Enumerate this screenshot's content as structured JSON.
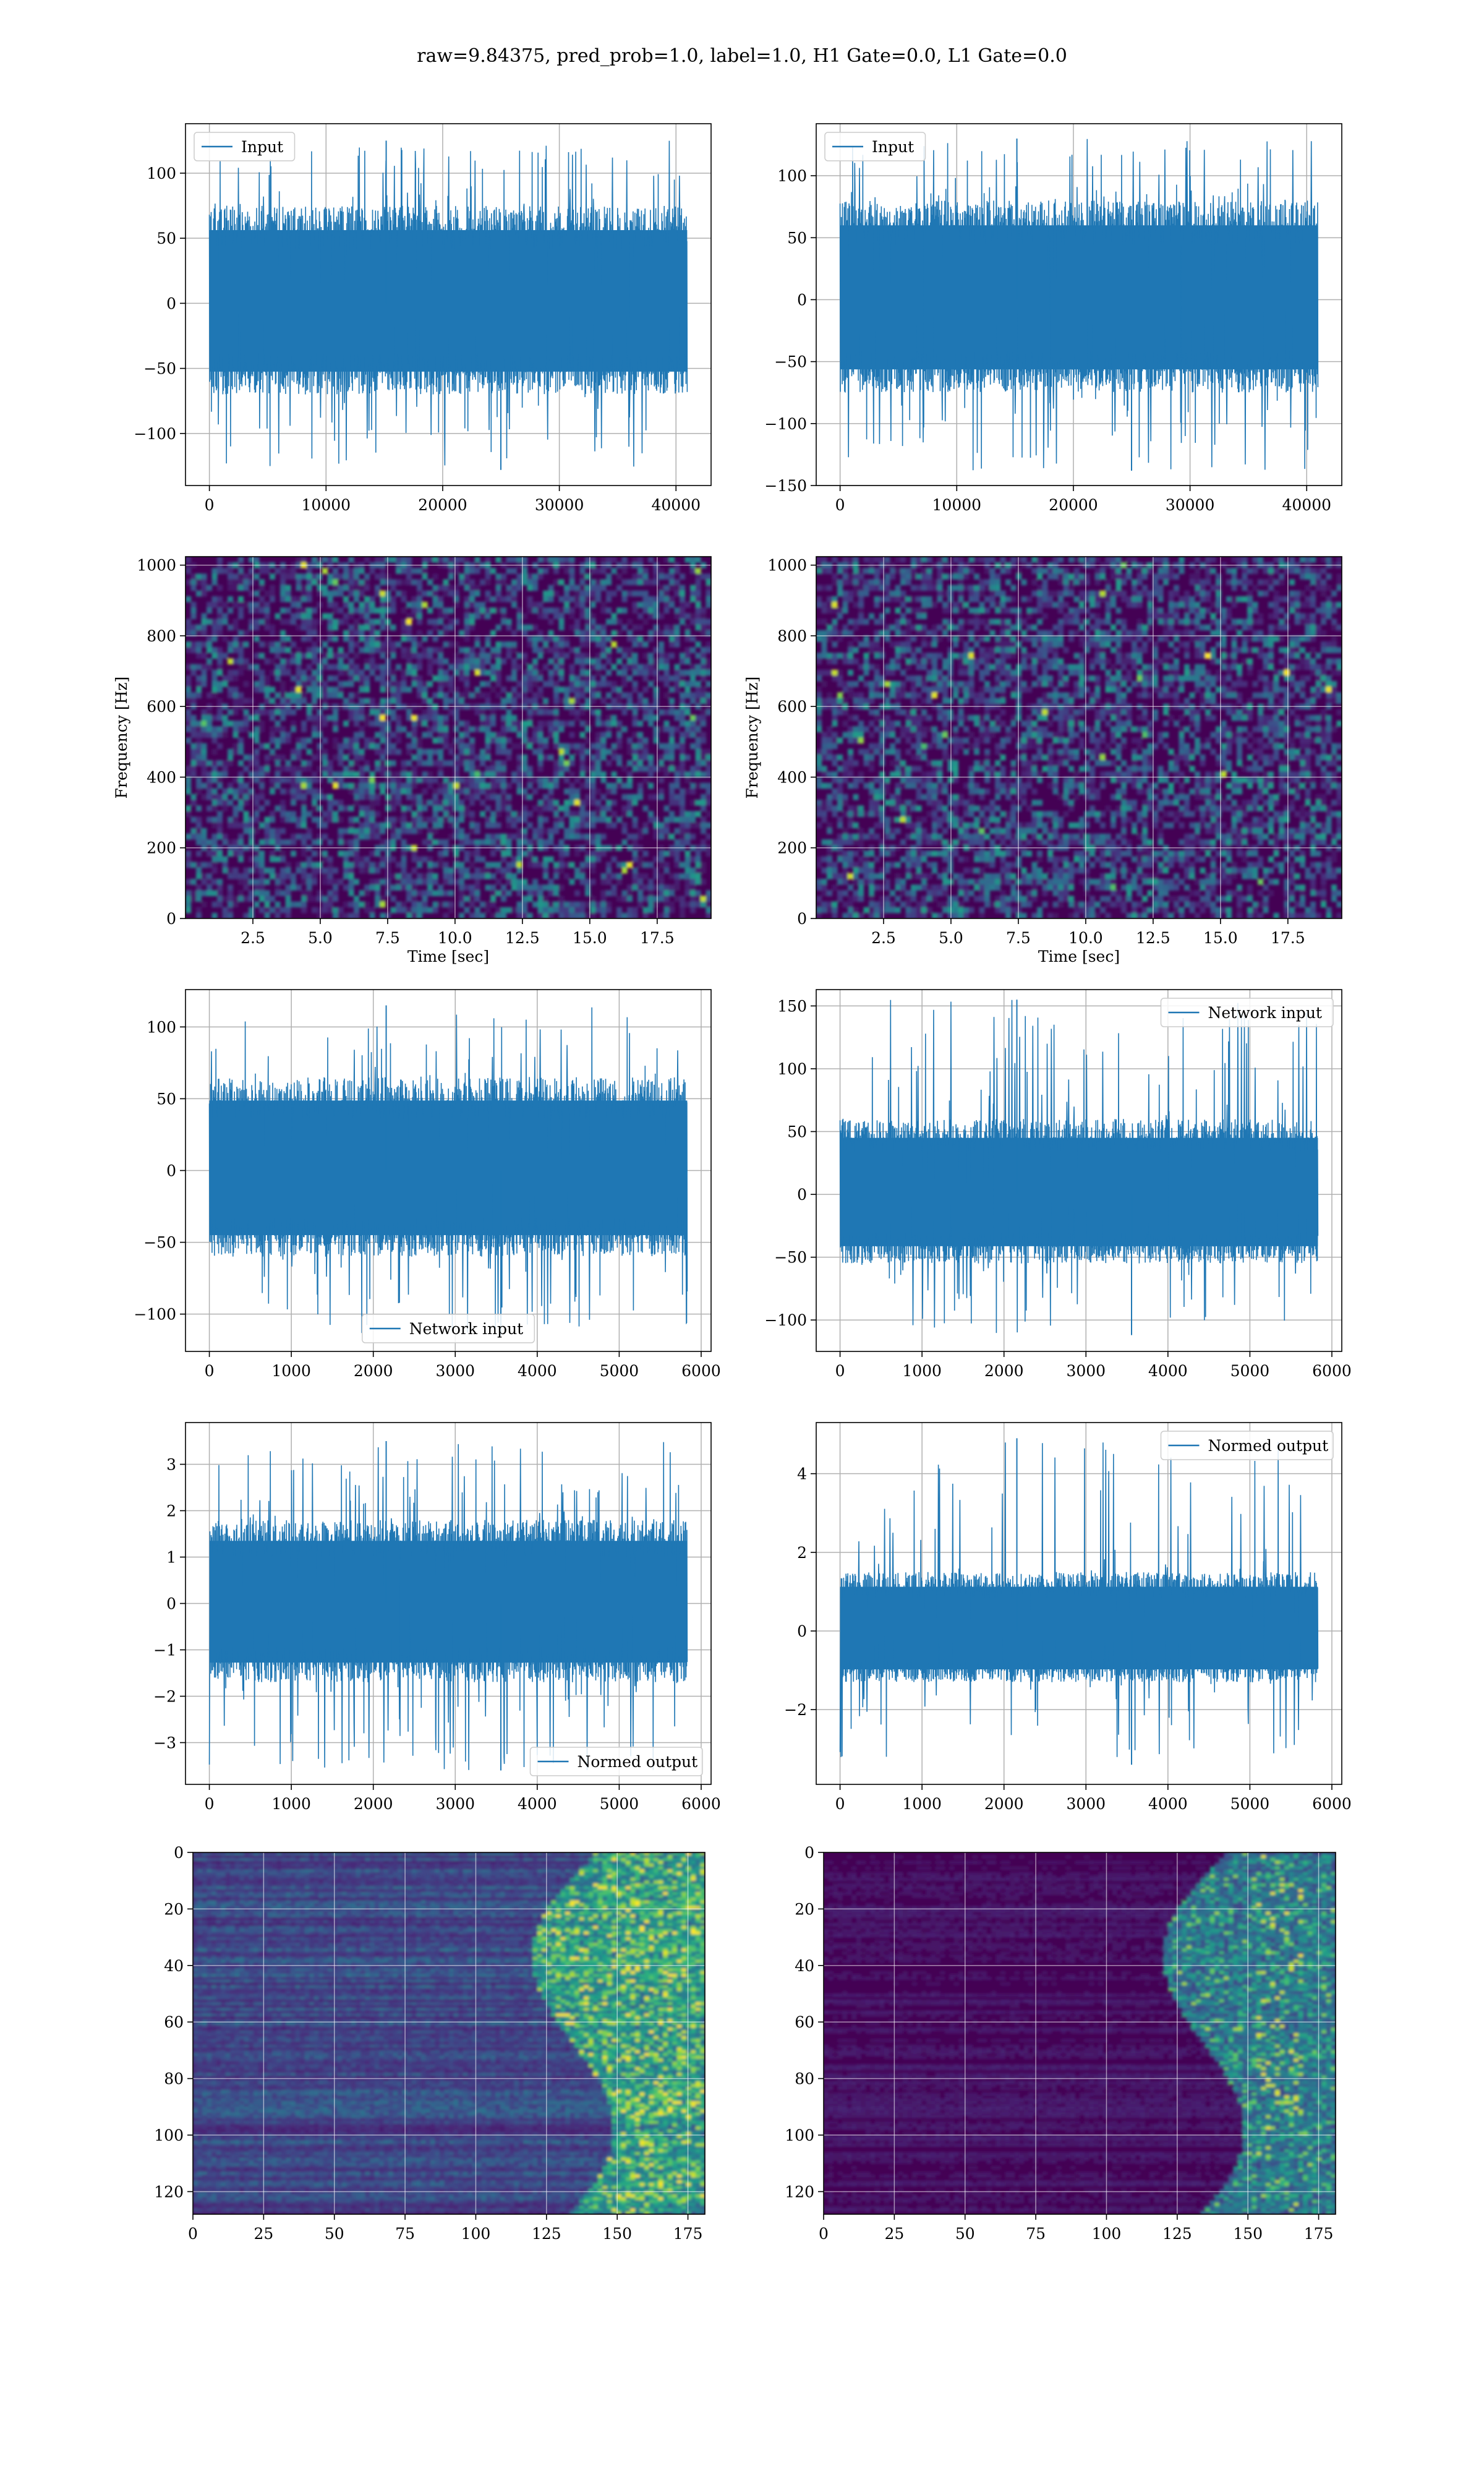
{
  "figure": {
    "suptitle": "raw=9.84375, pred_prob=1.0, label=1.0, H1 Gate=0.0, L1 Gate=0.0"
  },
  "colors": {
    "line": "#1f77b4",
    "grid": "#b0b0b0",
    "viridis_low": "#440154",
    "viridis_mid": "#21918c",
    "viridis_high": "#fde725"
  },
  "chart_data": [
    {
      "id": "p00",
      "type": "line",
      "legend": [
        "Input"
      ],
      "legend_loc": "upper left",
      "x": [
        0,
        40960
      ],
      "band_y": [
        -70,
        75
      ],
      "peak_y": [
        -128,
        125
      ],
      "xlim": [
        -2048,
        43008
      ],
      "ylim": [
        -140,
        138
      ],
      "xticks": [
        0,
        10000,
        20000,
        30000,
        40000
      ],
      "yticks": [
        -100,
        -50,
        0,
        50,
        100
      ],
      "grid": true,
      "xlabel": "",
      "ylabel": ""
    },
    {
      "id": "p01",
      "type": "line",
      "legend": [
        "Input"
      ],
      "legend_loc": "upper left",
      "x": [
        0,
        40960
      ],
      "band_y": [
        -75,
        80
      ],
      "peak_y": [
        -138,
        130
      ],
      "xlim": [
        -2048,
        43008
      ],
      "ylim": [
        -150,
        142
      ],
      "xticks": [
        0,
        10000,
        20000,
        30000,
        40000
      ],
      "yticks": [
        -150,
        -100,
        -50,
        0,
        50,
        100
      ],
      "grid": true,
      "xlabel": "",
      "ylabel": ""
    },
    {
      "id": "p10",
      "type": "heatmap",
      "x_range": [
        0,
        19.5
      ],
      "y_range": [
        0,
        1024
      ],
      "xlim": [
        0,
        19.5
      ],
      "ylim": [
        0,
        1024
      ],
      "xticks": [
        2.5,
        5.0,
        7.5,
        10.0,
        12.5,
        15.0,
        17.5
      ],
      "yticks": [
        0,
        200,
        400,
        600,
        800,
        1000
      ],
      "xlabel": "Time [sec]",
      "ylabel": "Frequency [Hz]",
      "grid": true
    },
    {
      "id": "p11",
      "type": "heatmap",
      "x_range": [
        0,
        19.5
      ],
      "y_range": [
        0,
        1024
      ],
      "xlim": [
        0,
        19.5
      ],
      "ylim": [
        0,
        1024
      ],
      "xticks": [
        2.5,
        5.0,
        7.5,
        10.0,
        12.5,
        15.0,
        17.5
      ],
      "yticks": [
        0,
        200,
        400,
        600,
        800,
        1000
      ],
      "xlabel": "Time [sec]",
      "ylabel": "Frequency [Hz]",
      "grid": true
    },
    {
      "id": "p20",
      "type": "line",
      "legend": [
        "Network input"
      ],
      "legend_loc": "lower center",
      "x": [
        0,
        5830
      ],
      "band_y": [
        -60,
        65
      ],
      "peak_y": [
        -115,
        115
      ],
      "xlim": [
        -291,
        6121
      ],
      "ylim": [
        -126,
        126
      ],
      "xticks": [
        0,
        1000,
        2000,
        3000,
        4000,
        5000,
        6000
      ],
      "yticks": [
        -100,
        -50,
        0,
        50,
        100
      ],
      "grid": true,
      "xlabel": "",
      "ylabel": ""
    },
    {
      "id": "p21",
      "type": "line",
      "legend": [
        "Network input"
      ],
      "legend_loc": "upper right",
      "x": [
        0,
        5830
      ],
      "band_y": [
        -55,
        60
      ],
      "peak_y": [
        -112,
        155
      ],
      "xlim": [
        -291,
        6121
      ],
      "ylim": [
        -125,
        163
      ],
      "xticks": [
        0,
        1000,
        2000,
        3000,
        4000,
        5000,
        6000
      ],
      "yticks": [
        -100,
        -50,
        0,
        50,
        100,
        150
      ],
      "grid": true,
      "xlabel": "",
      "ylabel": ""
    },
    {
      "id": "p30",
      "type": "line",
      "legend": [
        "Normed output"
      ],
      "legend_loc": "lower right",
      "x": [
        0,
        5830
      ],
      "band_y": [
        -1.7,
        1.8
      ],
      "peak_y": [
        -3.6,
        3.5
      ],
      "xlim": [
        -291,
        6121
      ],
      "ylim": [
        -3.9,
        3.9
      ],
      "xticks": [
        0,
        1000,
        2000,
        3000,
        4000,
        5000,
        6000
      ],
      "yticks": [
        -3,
        -2,
        -1,
        0,
        1,
        2,
        3
      ],
      "grid": true,
      "xlabel": "",
      "ylabel": ""
    },
    {
      "id": "p31",
      "type": "line",
      "legend": [
        "Normed output"
      ],
      "legend_loc": "upper right",
      "x": [
        0,
        5830
      ],
      "band_y": [
        -1.3,
        1.5
      ],
      "peak_y": [
        -3.4,
        4.9
      ],
      "xlim": [
        -291,
        6121
      ],
      "ylim": [
        -3.9,
        5.3
      ],
      "xticks": [
        0,
        1000,
        2000,
        3000,
        4000,
        5000,
        6000
      ],
      "yticks": [
        -2,
        0,
        2,
        4
      ],
      "grid": true,
      "xlabel": "",
      "ylabel": ""
    },
    {
      "id": "p40",
      "type": "heatmap",
      "x_range": [
        0,
        181
      ],
      "y_range": [
        0,
        128
      ],
      "y_inverted": true,
      "xlim": [
        0,
        181
      ],
      "ylim": [
        128,
        0
      ],
      "xticks": [
        0,
        25,
        50,
        75,
        100,
        125,
        150,
        175
      ],
      "yticks": [
        0,
        20,
        40,
        60,
        80,
        100,
        120
      ],
      "xlabel": "",
      "ylabel": "",
      "grid": true
    },
    {
      "id": "p41",
      "type": "heatmap",
      "x_range": [
        0,
        181
      ],
      "y_range": [
        0,
        128
      ],
      "y_inverted": true,
      "xlim": [
        0,
        181
      ],
      "ylim": [
        128,
        0
      ],
      "xticks": [
        0,
        25,
        50,
        75,
        100,
        125,
        150,
        175
      ],
      "yticks": [
        0,
        20,
        40,
        60,
        80,
        100,
        120
      ],
      "xlabel": "",
      "ylabel": "",
      "grid": true
    }
  ]
}
